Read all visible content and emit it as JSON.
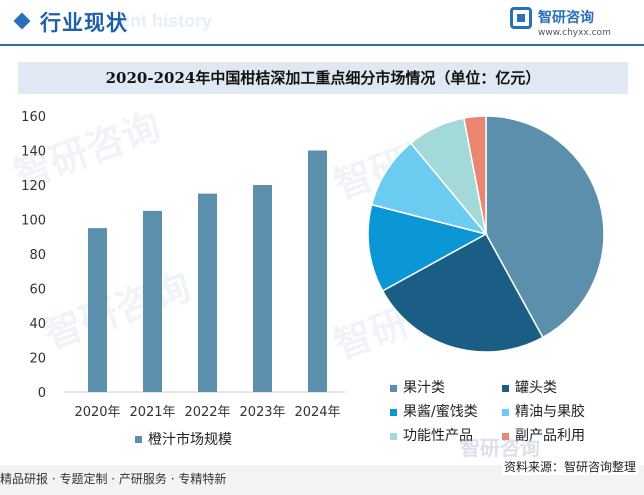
{
  "header": {
    "title": "行业现状",
    "ghost_text": "ent history"
  },
  "logo": {
    "name": "智研咨询",
    "url": "www.chyxx.com"
  },
  "watermark_text": "智研咨询",
  "chart_data": [
    {
      "type": "bar",
      "title": "2020-2024年中国柑桔深加工重点细分市场情况（单位：亿元）",
      "categories": [
        "2020年",
        "2021年",
        "2022年",
        "2023年",
        "2024年"
      ],
      "series": [
        {
          "name": "橙汁市场规模",
          "values": [
            95,
            105,
            115,
            120,
            140
          ],
          "color": "#5b8fab"
        }
      ],
      "ylim": [
        0,
        160
      ],
      "yticks": [
        0,
        20,
        40,
        60,
        80,
        100,
        120,
        140,
        160
      ],
      "grid": false,
      "legend": "bottom"
    },
    {
      "type": "pie",
      "slices": [
        {
          "label": "果汁类",
          "value": 42,
          "color": "#5b8fab"
        },
        {
          "label": "罐头类",
          "value": 25,
          "color": "#1b5e85"
        },
        {
          "label": "果酱/蜜饯类",
          "value": 12,
          "color": "#0b96d6"
        },
        {
          "label": "精油与果胶",
          "value": 10,
          "color": "#6ccbf0"
        },
        {
          "label": "功能性产品",
          "value": 8,
          "color": "#a3d9d8"
        },
        {
          "label": "副产品利用",
          "value": 3,
          "color": "#e8866f"
        }
      ],
      "legend": "bottom-right"
    }
  ],
  "footer": {
    "left": "精品研报 · 专题定制 · 产研服务 · 专精特新",
    "right": "资料来源：智研咨询整理",
    "ghost": "智研咨询"
  }
}
